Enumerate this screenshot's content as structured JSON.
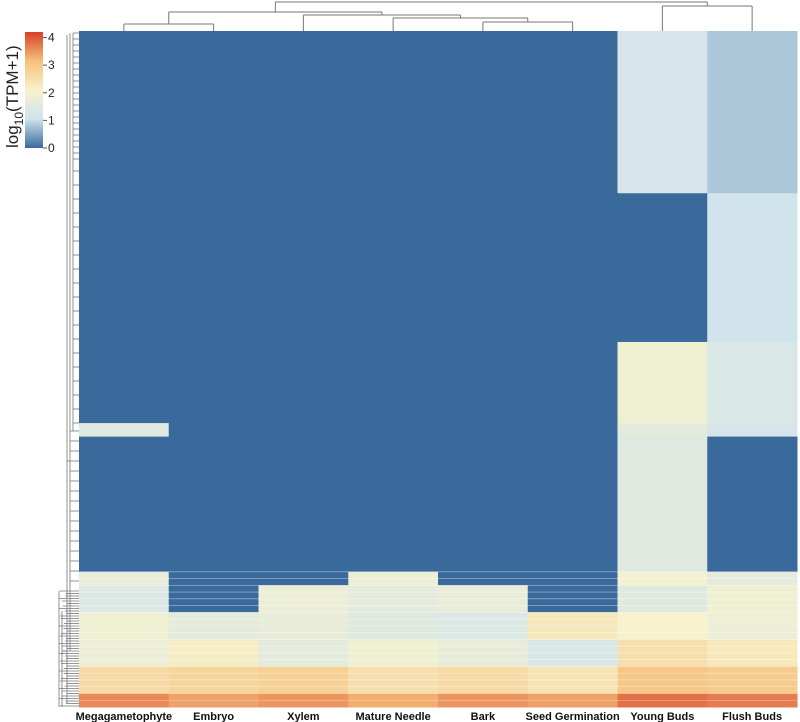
{
  "chart_data": {
    "type": "heatmap",
    "columns": [
      "Megagametophyte",
      "Embryo",
      "Xylem",
      "Mature Needle",
      "Bark",
      "Seed Germination",
      "Young Buds",
      "Flush Buds"
    ],
    "legend": {
      "title_main": "log",
      "title_sub": "10",
      "title_rest": "(TPM+1)",
      "ticks": [
        4,
        3,
        2,
        1,
        0
      ],
      "range": [
        0,
        4.2
      ],
      "colors": [
        "#3a6a9c",
        "#cfe3ee",
        "#f7f2cc",
        "#f6c07a",
        "#d8402a"
      ]
    },
    "row_dendrogram": true,
    "column_dendrogram": true,
    "column_clusters": [
      [
        "Megagametophyte",
        "Embryo",
        "Xylem",
        "Mature Needle",
        "Bark",
        "Seed Germination"
      ],
      [
        "Young Buds",
        "Flush Buds"
      ]
    ],
    "row_blocks": [
      {
        "rows": [
          0,
          24
        ],
        "values": [
          0,
          0,
          0,
          0,
          0,
          0,
          1.2,
          0.8
        ]
      },
      {
        "rows": [
          24,
          46
        ],
        "values": [
          0,
          0,
          0,
          0,
          0,
          0,
          0,
          1.1
        ]
      },
      {
        "rows": [
          46,
          58
        ],
        "values": [
          0,
          0,
          0,
          0,
          0,
          0,
          1.9,
          1.3
        ]
      },
      {
        "rows": [
          58,
          60
        ],
        "values": [
          1.5,
          0,
          0,
          0,
          0,
          0,
          1.6,
          1.2
        ]
      },
      {
        "rows": [
          60,
          80
        ],
        "values": [
          0,
          0,
          0,
          0,
          0,
          0,
          1.5,
          0
        ]
      },
      {
        "rows": [
          80,
          82
        ],
        "values": [
          1.7,
          0,
          0,
          1.8,
          0,
          0,
          2.0,
          1.6
        ]
      },
      {
        "rows": [
          82,
          86
        ],
        "values": [
          1.4,
          0,
          1.8,
          1.6,
          1.7,
          0,
          1.5,
          1.9
        ]
      },
      {
        "rows": [
          86,
          90
        ],
        "values": [
          1.9,
          1.6,
          1.7,
          1.5,
          1.4,
          2.3,
          2.1,
          1.8
        ]
      },
      {
        "rows": [
          90,
          94
        ],
        "values": [
          1.8,
          2.2,
          1.6,
          1.9,
          1.7,
          1.3,
          2.5,
          2.3
        ]
      },
      {
        "rows": [
          94,
          98
        ],
        "values": [
          2.6,
          2.7,
          2.8,
          2.5,
          2.6,
          2.4,
          3.0,
          2.9
        ]
      },
      {
        "rows": [
          98,
          100
        ],
        "values": [
          3.6,
          3.4,
          3.5,
          3.3,
          3.5,
          3.4,
          3.8,
          3.7
        ]
      }
    ]
  }
}
